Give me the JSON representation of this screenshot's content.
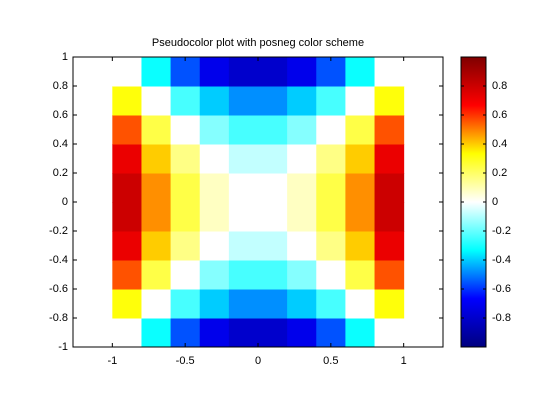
{
  "chart_data": {
    "type": "heatmap",
    "title": "Pseudocolor plot with posneg color scheme",
    "x": [
      -0.9,
      -0.7,
      -0.5,
      -0.3,
      -0.1,
      0.1,
      0.3,
      0.5,
      0.7,
      0.9
    ],
    "y": [
      -0.9,
      -0.7,
      -0.5,
      -0.3,
      -0.1,
      0.1,
      0.3,
      0.5,
      0.7,
      0.9
    ],
    "z": [
      [
        0,
        -0.32,
        -0.56,
        -0.72,
        -0.8,
        -0.8,
        -0.72,
        -0.56,
        -0.32,
        0
      ],
      [
        0.32,
        0,
        -0.24,
        -0.4,
        -0.48,
        -0.48,
        -0.4,
        -0.24,
        0,
        0.32
      ],
      [
        0.56,
        0.24,
        0,
        -0.16,
        -0.24,
        -0.24,
        -0.16,
        0,
        0.24,
        0.56
      ],
      [
        0.72,
        0.4,
        0.16,
        0,
        -0.08,
        -0.08,
        0,
        0.16,
        0.4,
        0.72
      ],
      [
        0.8,
        0.48,
        0.24,
        0.08,
        0,
        0,
        0.08,
        0.24,
        0.48,
        0.8
      ],
      [
        0.8,
        0.48,
        0.24,
        0.08,
        0,
        0,
        0.08,
        0.24,
        0.48,
        0.8
      ],
      [
        0.72,
        0.4,
        0.16,
        0,
        -0.08,
        -0.08,
        0,
        0.16,
        0.4,
        0.72
      ],
      [
        0.56,
        0.24,
        0,
        -0.16,
        -0.24,
        -0.24,
        -0.16,
        0,
        0.24,
        0.56
      ],
      [
        0.32,
        0,
        -0.24,
        -0.4,
        -0.48,
        -0.48,
        -0.4,
        -0.24,
        0,
        0.32
      ],
      [
        0,
        -0.32,
        -0.56,
        -0.72,
        -0.8,
        -0.8,
        -0.72,
        -0.56,
        -0.32,
        0
      ]
    ],
    "xlim": [
      -1.27,
      1.27
    ],
    "xticks": [
      -1,
      -0.5,
      0,
      0.5,
      1
    ],
    "ylim": [
      -1,
      1
    ],
    "yticks": [
      -1,
      -0.8,
      -0.6,
      -0.4,
      -0.2,
      0,
      0.2,
      0.4,
      0.6,
      0.8,
      1
    ],
    "clim": [
      -1,
      1
    ],
    "cticks": [
      -0.8,
      -0.6,
      -0.4,
      -0.2,
      0,
      0.2,
      0.4,
      0.6,
      0.8
    ],
    "colormap": [
      "#00007f",
      "#0000ff",
      "#00ffff",
      "#ffffff",
      "#ffff00",
      "#ff0000",
      "#7f0000"
    ]
  }
}
